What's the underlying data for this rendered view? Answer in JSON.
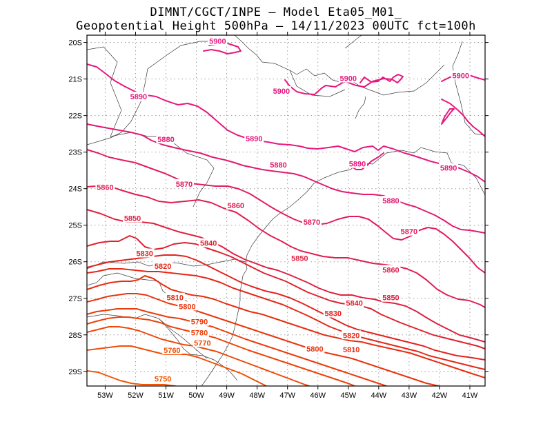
{
  "title": {
    "line1": "DIMNT/CGCT/INPE —  Model Eta05_M01_",
    "line2": "Geopotential Height 500hPa —  14/11/2023 00UTC fct=100h"
  },
  "chart_data": {
    "type": "contour_map",
    "variable": "Geopotential Height 500hPa",
    "model": "Eta05_M01_",
    "run": "14/11/2023 00UTC",
    "forecast": "fct=100h",
    "lon_range": [
      -53.6,
      -40.5
    ],
    "lat_range": [
      -29.4,
      -19.8
    ],
    "lon_ticks": [
      "53W",
      "52W",
      "51W",
      "50W",
      "49W",
      "48W",
      "47W",
      "46W",
      "45W",
      "44W",
      "43W",
      "42W",
      "41W"
    ],
    "lat_ticks": [
      "20S",
      "21S",
      "22S",
      "23S",
      "24S",
      "25S",
      "26S",
      "27S",
      "28S",
      "29S"
    ],
    "contour_interval": 10,
    "contours": [
      {
        "value": 5900,
        "color": "#e8177e"
      },
      {
        "value": 5890,
        "color": "#e8177e"
      },
      {
        "value": 5880,
        "color": "#e4196f"
      },
      {
        "value": 5870,
        "color": "#e21c5e"
      },
      {
        "value": 5860,
        "color": "#e01e50"
      },
      {
        "value": 5850,
        "color": "#df2040"
      },
      {
        "value": 5840,
        "color": "#e0202d"
      },
      {
        "value": 5830,
        "color": "#e3221f"
      },
      {
        "value": 5820,
        "color": "#e52717"
      },
      {
        "value": 5810,
        "color": "#e82d10"
      },
      {
        "value": 5800,
        "color": "#ea330c"
      },
      {
        "value": 5790,
        "color": "#ec3a0a"
      },
      {
        "value": 5780,
        "color": "#ee4108"
      },
      {
        "value": 5770,
        "color": "#ef4706"
      },
      {
        "value": 5760,
        "color": "#f04e05"
      },
      {
        "value": 5750,
        "color": "#f15504"
      }
    ],
    "labels": [
      {
        "text": "5900",
        "lon": -49.3,
        "lat": -19.96,
        "color": "#e8177e"
      },
      {
        "text": "5900",
        "lon": -45.0,
        "lat": -20.98,
        "color": "#e8177e"
      },
      {
        "text": "5900",
        "lon": -47.2,
        "lat": -21.33,
        "color": "#e8177e"
      },
      {
        "text": "5900",
        "lon": -41.3,
        "lat": -20.9,
        "color": "#e8177e"
      },
      {
        "text": "5890",
        "lon": -51.9,
        "lat": -21.48,
        "color": "#e8177e"
      },
      {
        "text": "5890",
        "lon": -48.1,
        "lat": -22.63,
        "color": "#e8177e"
      },
      {
        "text": "5890",
        "lon": -44.7,
        "lat": -23.32,
        "color": "#e8177e"
      },
      {
        "text": "5890",
        "lon": -41.7,
        "lat": -23.43,
        "color": "#e8177e"
      },
      {
        "text": "5880",
        "lon": -51.0,
        "lat": -22.65,
        "color": "#e4196f"
      },
      {
        "text": "5880",
        "lon": -47.3,
        "lat": -23.35,
        "color": "#e4196f"
      },
      {
        "text": "5880",
        "lon": -43.6,
        "lat": -24.33,
        "color": "#e4196f"
      },
      {
        "text": "5870",
        "lon": -50.4,
        "lat": -23.87,
        "color": "#e21c5e"
      },
      {
        "text": "5870",
        "lon": -46.2,
        "lat": -24.91,
        "color": "#e21c5e"
      },
      {
        "text": "5870",
        "lon": -43.0,
        "lat": -25.17,
        "color": "#e21c5e"
      },
      {
        "text": "5860",
        "lon": -53.0,
        "lat": -23.96,
        "color": "#e01e50"
      },
      {
        "text": "5860",
        "lon": -48.7,
        "lat": -24.46,
        "color": "#e01e50"
      },
      {
        "text": "5860",
        "lon": -43.6,
        "lat": -26.22,
        "color": "#e01e50"
      },
      {
        "text": "5850",
        "lon": -52.1,
        "lat": -24.81,
        "color": "#df2040"
      },
      {
        "text": "5850",
        "lon": -46.6,
        "lat": -25.9,
        "color": "#df2040"
      },
      {
        "text": "5850",
        "lon": -43.6,
        "lat": -26.98,
        "color": "#df2040"
      },
      {
        "text": "5840",
        "lon": -49.6,
        "lat": -25.49,
        "color": "#e0202d"
      },
      {
        "text": "5840",
        "lon": -44.8,
        "lat": -27.13,
        "color": "#e0202d"
      },
      {
        "text": "5830",
        "lon": -51.7,
        "lat": -25.77,
        "color": "#e3221f"
      },
      {
        "text": "5830",
        "lon": -45.5,
        "lat": -27.41,
        "color": "#e3221f"
      },
      {
        "text": "5820",
        "lon": -51.1,
        "lat": -26.12,
        "color": "#e52717"
      },
      {
        "text": "5820",
        "lon": -44.9,
        "lat": -28.01,
        "color": "#e52717"
      },
      {
        "text": "5810",
        "lon": -50.7,
        "lat": -26.98,
        "color": "#e82d10"
      },
      {
        "text": "5810",
        "lon": -44.9,
        "lat": -28.4,
        "color": "#e82d10"
      },
      {
        "text": "5800",
        "lon": -50.3,
        "lat": -27.22,
        "color": "#ea330c"
      },
      {
        "text": "5800",
        "lon": -46.1,
        "lat": -28.38,
        "color": "#ea330c"
      },
      {
        "text": "5790",
        "lon": -49.9,
        "lat": -27.64,
        "color": "#ec3a0a"
      },
      {
        "text": "5780",
        "lon": -49.9,
        "lat": -27.94,
        "color": "#ee4108"
      },
      {
        "text": "5770",
        "lon": -49.8,
        "lat": -28.22,
        "color": "#ef4706"
      },
      {
        "text": "5760",
        "lon": -50.8,
        "lat": -28.42,
        "color": "#f04e05"
      },
      {
        "text": "5750",
        "lon": -51.1,
        "lat": -29.2,
        "color": "#f15504"
      }
    ]
  }
}
